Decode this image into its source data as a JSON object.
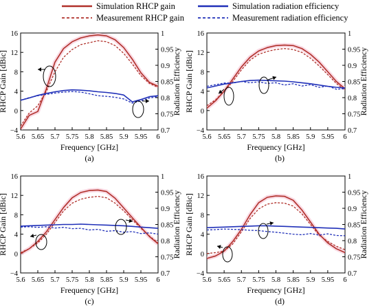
{
  "colors": {
    "gain": "#b0302a",
    "efficiency": "#1f2fb8",
    "halo": "#f6c7d6"
  },
  "legend": [
    {
      "label": "Simulation RHCP gain",
      "color": "#b0302a",
      "dash": false
    },
    {
      "label": "Measurement RHCP gain",
      "color": "#b0302a",
      "dash": true
    },
    {
      "label": "Simulation radiation efficiency",
      "color": "#1f2fb8",
      "dash": false
    },
    {
      "label": "Measurement radiation efficiency",
      "color": "#1f2fb8",
      "dash": true
    }
  ],
  "axes": {
    "xlabel": "Frequency [GHz]",
    "ylabel_left": "RHCP Gain [dBic]",
    "ylabel_right": "Radiation Efficiency",
    "x_ticks": [
      "5.6",
      "5.65",
      "5.7",
      "5.75",
      "5.8",
      "5.85",
      "5.9",
      "5.95",
      "6"
    ],
    "y_left_ticks": [
      "16",
      "12",
      "8",
      "4",
      "0",
      "−4"
    ],
    "y_right_ticks": [
      "1",
      "0.95",
      "0.9",
      "0.85",
      "0.8",
      "0.75",
      "0.7"
    ]
  },
  "chart_data": [
    {
      "type": "line",
      "caption": "(a)",
      "xlim": [
        5.6,
        6.0
      ],
      "ylim_left": [
        -4,
        16
      ],
      "ylim_right": [
        0.7,
        1.0
      ],
      "x": [
        5.6,
        5.625,
        5.65,
        5.675,
        5.7,
        5.725,
        5.75,
        5.775,
        5.8,
        5.825,
        5.85,
        5.875,
        5.9,
        5.925,
        5.95,
        5.975,
        6.0
      ],
      "series": [
        {
          "name": "Simulation RHCP gain",
          "axis": "left",
          "values": [
            -3.8,
            -1.0,
            -0.2,
            4.5,
            10.0,
            12.8,
            14.2,
            15.0,
            15.4,
            15.6,
            15.4,
            14.6,
            13.0,
            10.6,
            7.8,
            5.8,
            5.0
          ]
        },
        {
          "name": "Measurement RHCP gain",
          "axis": "left",
          "values": [
            -3.2,
            -0.5,
            1.0,
            4.0,
            8.0,
            11.0,
            12.6,
            13.6,
            14.0,
            14.4,
            14.2,
            13.4,
            11.8,
            9.6,
            7.2,
            5.6,
            4.8
          ]
        },
        {
          "name": "Simulation radiation efficiency",
          "axis": "right",
          "values": [
            0.792,
            0.799,
            0.807,
            0.813,
            0.818,
            0.822,
            0.824,
            0.823,
            0.821,
            0.818,
            0.816,
            0.813,
            0.808,
            0.787,
            0.794,
            0.803,
            0.806
          ]
        },
        {
          "name": "Measurement radiation efficiency",
          "axis": "right",
          "values": [
            0.792,
            0.8,
            0.806,
            0.81,
            0.814,
            0.817,
            0.819,
            0.817,
            0.812,
            0.806,
            0.804,
            0.801,
            0.796,
            0.783,
            0.79,
            0.799,
            0.803
          ]
        }
      ]
    },
    {
      "type": "line",
      "caption": "(b)",
      "xlim": [
        5.6,
        6.0
      ],
      "ylim_left": [
        -4,
        16
      ],
      "ylim_right": [
        0.7,
        1.0
      ],
      "x": [
        5.6,
        5.625,
        5.65,
        5.675,
        5.7,
        5.725,
        5.75,
        5.775,
        5.8,
        5.825,
        5.85,
        5.875,
        5.9,
        5.925,
        5.95,
        5.975,
        6.0
      ],
      "series": [
        {
          "name": "Simulation RHCP gain",
          "axis": "left",
          "values": [
            0.5,
            2.0,
            4.0,
            6.5,
            9.0,
            11.0,
            12.3,
            13.0,
            13.4,
            13.5,
            13.4,
            12.8,
            11.6,
            10.0,
            8.0,
            6.0,
            4.5
          ]
        },
        {
          "name": "Measurement RHCP gain",
          "axis": "left",
          "values": [
            1.0,
            2.2,
            4.0,
            6.0,
            8.4,
            10.4,
            11.6,
            12.2,
            12.6,
            12.8,
            12.6,
            12.0,
            10.8,
            9.2,
            7.4,
            5.6,
            4.2
          ]
        },
        {
          "name": "Simulation radiation efficiency",
          "axis": "right",
          "values": [
            0.83,
            0.836,
            0.842,
            0.846,
            0.85,
            0.853,
            0.854,
            0.853,
            0.852,
            0.851,
            0.849,
            0.846,
            0.843,
            0.839,
            0.835,
            0.832,
            0.83
          ]
        },
        {
          "name": "Measurement radiation efficiency",
          "axis": "right",
          "values": [
            0.835,
            0.84,
            0.845,
            0.845,
            0.85,
            0.846,
            0.849,
            0.844,
            0.846,
            0.839,
            0.843,
            0.836,
            0.84,
            0.832,
            0.836,
            0.826,
            0.828
          ]
        }
      ]
    },
    {
      "type": "line",
      "caption": "(c)",
      "xlim": [
        5.6,
        6.0
      ],
      "ylim_left": [
        -4,
        16
      ],
      "ylim_right": [
        0.7,
        1.0
      ],
      "x": [
        5.6,
        5.625,
        5.65,
        5.675,
        5.7,
        5.725,
        5.75,
        5.775,
        5.8,
        5.825,
        5.85,
        5.875,
        5.9,
        5.925,
        5.95,
        5.975,
        6.0
      ],
      "series": [
        {
          "name": "Simulation RHCP gain",
          "axis": "left",
          "values": [
            0.0,
            1.0,
            2.5,
            4.5,
            7.0,
            9.5,
            11.5,
            12.6,
            13.0,
            13.1,
            12.8,
            11.4,
            9.4,
            7.4,
            5.4,
            3.5,
            2.0
          ]
        },
        {
          "name": "Measurement RHCP gain",
          "axis": "left",
          "values": [
            0.2,
            1.0,
            2.2,
            4.0,
            6.4,
            8.8,
            10.4,
            11.2,
            11.6,
            11.8,
            11.5,
            10.4,
            8.8,
            7.0,
            5.2,
            3.6,
            2.2
          ]
        },
        {
          "name": "Simulation radiation efficiency",
          "axis": "right",
          "values": [
            0.845,
            0.846,
            0.847,
            0.848,
            0.849,
            0.85,
            0.85,
            0.851,
            0.85,
            0.849,
            0.848,
            0.847,
            0.846,
            0.844,
            0.842,
            0.84,
            0.838
          ]
        },
        {
          "name": "Measurement radiation efficiency",
          "axis": "right",
          "values": [
            0.842,
            0.843,
            0.841,
            0.843,
            0.839,
            0.841,
            0.837,
            0.838,
            0.833,
            0.835,
            0.829,
            0.831,
            0.826,
            0.828,
            0.822,
            0.824,
            0.82
          ]
        }
      ]
    },
    {
      "type": "line",
      "caption": "(d)",
      "xlim": [
        5.6,
        6.0
      ],
      "ylim_left": [
        -4,
        16
      ],
      "ylim_right": [
        0.7,
        1.0
      ],
      "x": [
        5.6,
        5.625,
        5.65,
        5.675,
        5.7,
        5.725,
        5.75,
        5.775,
        5.8,
        5.825,
        5.85,
        5.875,
        5.9,
        5.925,
        5.95,
        5.975,
        6.0
      ],
      "series": [
        {
          "name": "Simulation RHCP gain",
          "axis": "left",
          "values": [
            -1.0,
            -0.5,
            0.5,
            2.5,
            5.0,
            8.0,
            10.5,
            11.6,
            11.9,
            11.8,
            11.0,
            9.0,
            6.5,
            4.0,
            2.2,
            1.0,
            0.2
          ]
        },
        {
          "name": "Measurement RHCP gain",
          "axis": "left",
          "values": [
            0.0,
            0.2,
            0.5,
            2.0,
            4.5,
            7.2,
            9.2,
            10.2,
            10.5,
            10.4,
            9.8,
            8.2,
            6.0,
            3.8,
            2.5,
            1.5,
            0.8
          ]
        },
        {
          "name": "Simulation radiation efficiency",
          "axis": "right",
          "values": [
            0.84,
            0.841,
            0.842,
            0.843,
            0.844,
            0.845,
            0.846,
            0.846,
            0.845,
            0.844,
            0.843,
            0.842,
            0.841,
            0.84,
            0.839,
            0.838,
            0.836
          ]
        },
        {
          "name": "Measurement radiation efficiency",
          "axis": "right",
          "values": [
            0.833,
            0.834,
            0.836,
            0.835,
            0.834,
            0.832,
            0.831,
            0.828,
            0.826,
            0.823,
            0.82,
            0.818,
            0.822,
            0.817,
            0.821,
            0.816,
            0.815
          ]
        }
      ]
    }
  ]
}
